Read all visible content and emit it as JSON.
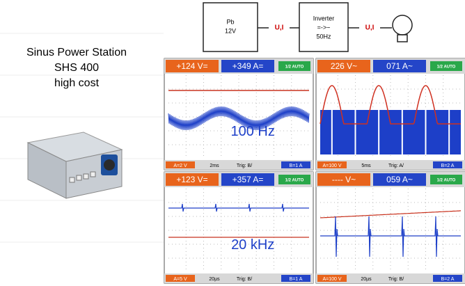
{
  "caption": {
    "lines": [
      "Sinus Power Station",
      "SHS 400",
      "high cost"
    ]
  },
  "diagram": {
    "battery": [
      "Pb",
      "12V"
    ],
    "link1": "U,I",
    "inverter": [
      "Inverter",
      "=->~",
      "50Hz"
    ],
    "link2": "U,I"
  },
  "scopes": [
    {
      "reading_a": "+124 V=",
      "reading_b": "+349 A=",
      "mode": "1/2 AUTO",
      "scale_a": "A=2 V",
      "timebase": "2ms",
      "trigger": "Trig: B/",
      "scale_b": "B=1 A",
      "label": "100 Hz"
    },
    {
      "reading_a": "226 V~",
      "reading_b": "071 A~",
      "mode": "1/2 AUTO",
      "scale_a": "A=100 V",
      "timebase": "5ms",
      "trigger": "Trig: A/",
      "scale_b": "B=2 A"
    },
    {
      "reading_a": "+123 V=",
      "reading_b": "+357 A=",
      "mode": "1/2 AUTO",
      "scale_a": "A=5 V",
      "timebase": "20µs",
      "trigger": "Trig: B/",
      "scale_b": "B=1 A",
      "label": "20 kHz"
    },
    {
      "reading_a": "---- V~",
      "reading_b": "059 A~",
      "mode": "1/2 AUTO",
      "scale_a": "A=100 V",
      "timebase": "20µs",
      "trigger": "Trig: B/",
      "scale_b": "B=2 A"
    }
  ]
}
